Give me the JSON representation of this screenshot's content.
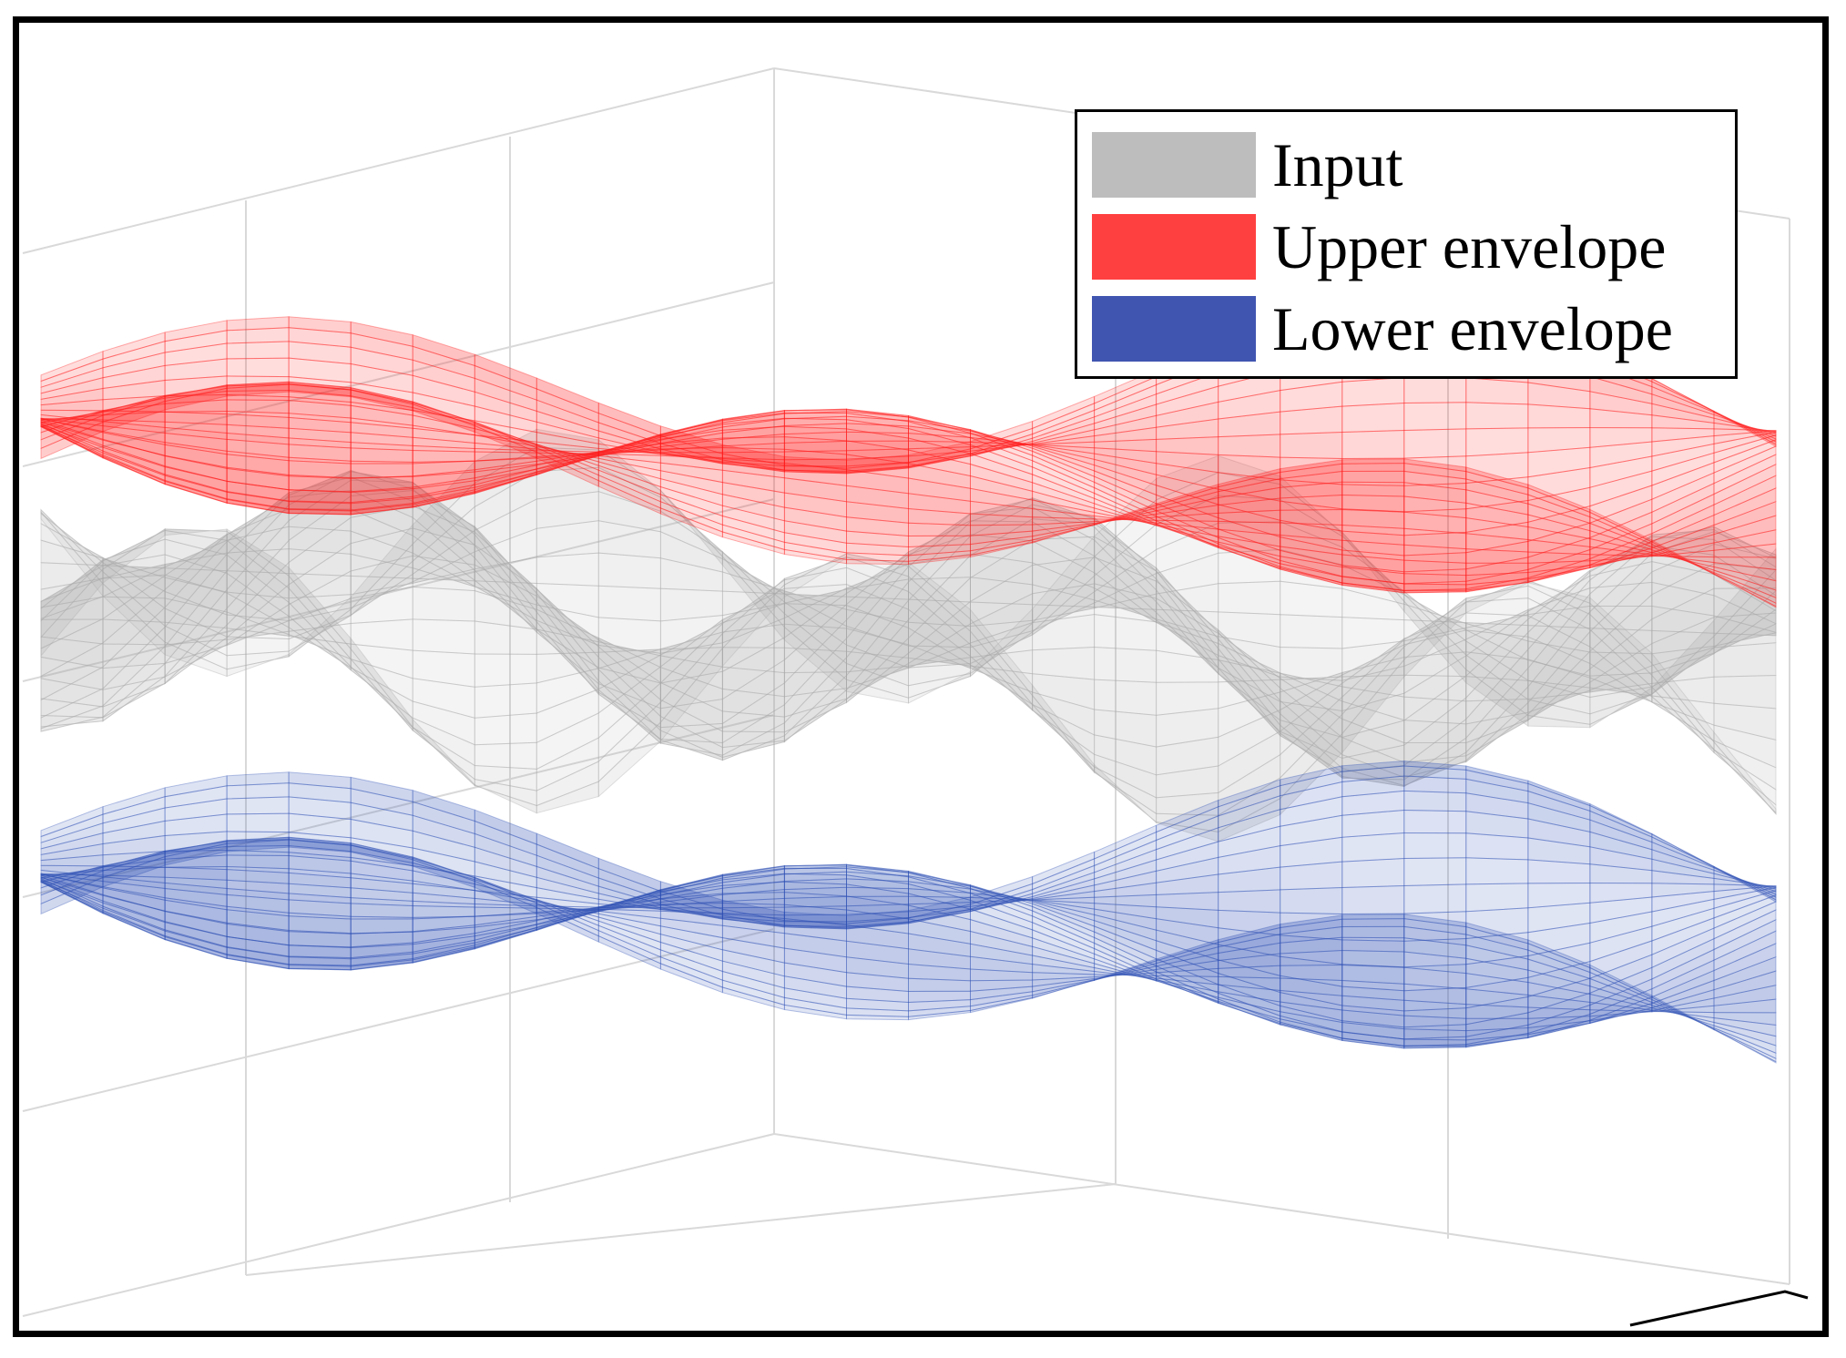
{
  "chart_data": {
    "type": "surface",
    "series": [
      {
        "name": "Input",
        "color": "#a8a8a8",
        "opacity": 0.7
      },
      {
        "name": "Upper envelope",
        "color": "#ff1a1a",
        "opacity": 0.85
      },
      {
        "name": "Lower envelope",
        "color": "#2e4fb5",
        "opacity": 0.85
      }
    ],
    "grid": true,
    "legend_position": "top-right"
  },
  "colors": {
    "input": "#a8a8a8",
    "upper": "#ff1a1a",
    "lower": "#2e4fb5",
    "grid": "#d9d9d9",
    "frame": "#000000"
  }
}
